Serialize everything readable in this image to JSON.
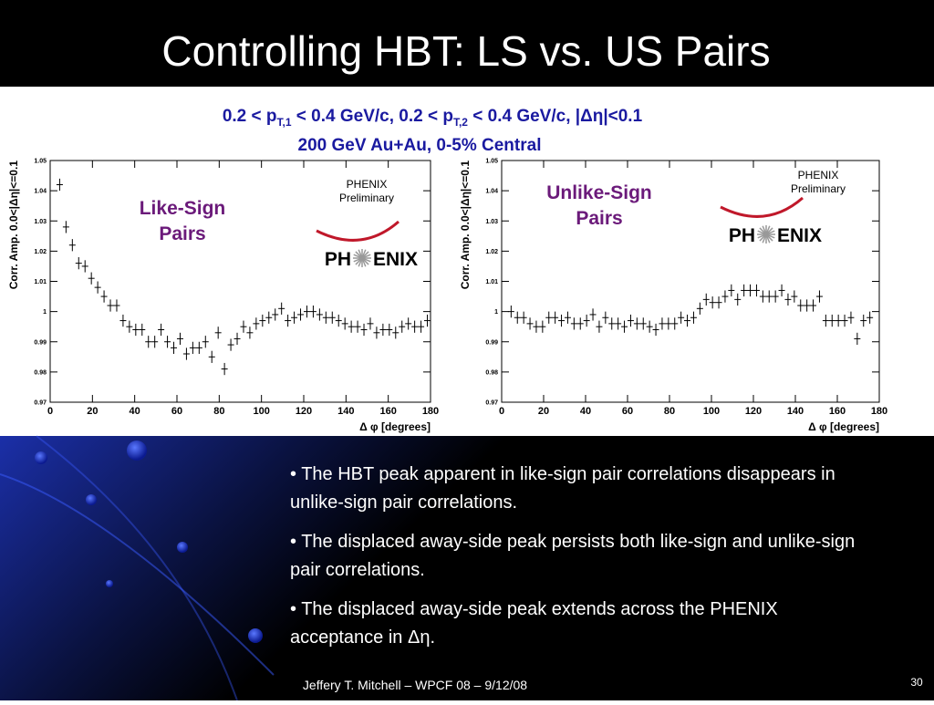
{
  "title": "Controlling HBT: LS vs. US Pairs",
  "header_line1": [
    "0.2 < p",
    "T,1",
    " < 0.4 GeV/c, 0.2 < p",
    "T,2",
    " < 0.4 GeV/c, |Δη|<0.1"
  ],
  "header_line2": "200 GeV Au+Au, 0-5% Central",
  "bullets": [
    "• The HBT peak apparent in like-sign pair correlations disappears in unlike-sign pair correlations.",
    "• The displaced away-side peak persists both like-sign and unlike-sign pair correlations.",
    "• The displaced away-side peak extends across the PHENIX acceptance in Δη."
  ],
  "footer": "Jeffery T. Mitchell – WPCF 08 – 9/12/08",
  "page_number": "30",
  "chart_data": [
    {
      "type": "scatter",
      "label": [
        "Like-Sign",
        "Pairs"
      ],
      "label_color": "#6b1a7a",
      "preliminary": [
        "PHENIX",
        "Preliminary"
      ],
      "logo": [
        "PH",
        "ENIX"
      ],
      "xlabel": "Δ φ [degrees]",
      "ylabel": "Corr. Amp. 0.0<|Δη|<=0.1",
      "xlim": [
        0,
        180
      ],
      "ylim": [
        0.97,
        1.05
      ],
      "xticks": [
        0,
        20,
        40,
        60,
        80,
        100,
        120,
        140,
        160,
        180
      ],
      "yticks": [
        0.97,
        0.98,
        0.99,
        1,
        1.01,
        1.02,
        1.03,
        1.04,
        1.05
      ],
      "error": 0.002,
      "color": "#000000",
      "x": [
        4.5,
        7.5,
        10.5,
        13.5,
        16.5,
        19.5,
        22.5,
        25.5,
        28.5,
        31.5,
        34.5,
        37.5,
        40.5,
        43.5,
        46.5,
        49.5,
        52.5,
        55.5,
        58.5,
        61.5,
        64.5,
        67.5,
        70.5,
        73.5,
        76.5,
        79.5,
        82.5,
        85.5,
        88.5,
        91.5,
        94.5,
        97.5,
        100.5,
        103.5,
        106.5,
        109.5,
        112.5,
        115.5,
        118.5,
        121.5,
        124.5,
        127.5,
        130.5,
        133.5,
        136.5,
        139.5,
        142.5,
        145.5,
        148.5,
        151.5,
        154.5,
        157.5,
        160.5,
        163.5,
        166.5,
        169.5,
        172.5,
        175.5,
        178.5
      ],
      "values": [
        1.042,
        1.028,
        1.022,
        1.016,
        1.015,
        1.011,
        1.008,
        1.005,
        1.002,
        1.002,
        0.997,
        0.995,
        0.994,
        0.994,
        0.99,
        0.99,
        0.994,
        0.99,
        0.988,
        0.991,
        0.986,
        0.988,
        0.988,
        0.99,
        0.985,
        0.993,
        0.981,
        0.989,
        0.991,
        0.995,
        0.993,
        0.996,
        0.997,
        0.998,
        0.999,
        1.001,
        0.997,
        0.998,
        0.999,
        1,
        1,
        0.999,
        0.998,
        0.998,
        0.997,
        0.996,
        0.995,
        0.995,
        0.994,
        0.996,
        0.993,
        0.994,
        0.994,
        0.993,
        0.995,
        0.996,
        0.995,
        0.995,
        0.997
      ]
    },
    {
      "type": "scatter",
      "label": [
        "Unlike-Sign",
        "Pairs"
      ],
      "label_color": "#6b1a7a",
      "preliminary": [
        "PHENIX",
        "Preliminary"
      ],
      "logo": [
        "PH",
        "ENIX"
      ],
      "xlabel": "Δ φ [degrees]",
      "ylabel": "Corr. Amp. 0.0<|Δη|<=0.1",
      "xlim": [
        0,
        180
      ],
      "ylim": [
        0.97,
        1.05
      ],
      "xticks": [
        0,
        20,
        40,
        60,
        80,
        100,
        120,
        140,
        160,
        180
      ],
      "yticks": [
        0.97,
        0.98,
        0.99,
        1,
        1.01,
        1.02,
        1.03,
        1.04,
        1.05
      ],
      "error": 0.002,
      "color": "#000000",
      "x": [
        4.5,
        7.5,
        10.5,
        13.5,
        16.5,
        19.5,
        22.5,
        25.5,
        28.5,
        31.5,
        34.5,
        37.5,
        40.5,
        43.5,
        46.5,
        49.5,
        52.5,
        55.5,
        58.5,
        61.5,
        64.5,
        67.5,
        70.5,
        73.5,
        76.5,
        79.5,
        82.5,
        85.5,
        88.5,
        91.5,
        94.5,
        97.5,
        100.5,
        103.5,
        106.5,
        109.5,
        112.5,
        115.5,
        118.5,
        121.5,
        124.5,
        127.5,
        130.5,
        133.5,
        136.5,
        139.5,
        142.5,
        145.5,
        148.5,
        151.5,
        154.5,
        157.5,
        160.5,
        163.5,
        166.5,
        169.5,
        172.5,
        175.5
      ],
      "values": [
        1,
        0.998,
        0.998,
        0.996,
        0.995,
        0.995,
        0.998,
        0.998,
        0.997,
        0.998,
        0.996,
        0.996,
        0.997,
        0.999,
        0.995,
        0.998,
        0.996,
        0.996,
        0.995,
        0.997,
        0.996,
        0.996,
        0.995,
        0.994,
        0.996,
        0.996,
        0.996,
        0.998,
        0.997,
        0.998,
        1.001,
        1.004,
        1.003,
        1.003,
        1.005,
        1.007,
        1.004,
        1.007,
        1.007,
        1.007,
        1.005,
        1.005,
        1.005,
        1.007,
        1.004,
        1.005,
        1.002,
        1.002,
        1.002,
        1.005,
        0.997,
        0.997,
        0.997,
        0.997,
        0.998,
        0.991,
        0.997,
        0.998
      ]
    }
  ]
}
